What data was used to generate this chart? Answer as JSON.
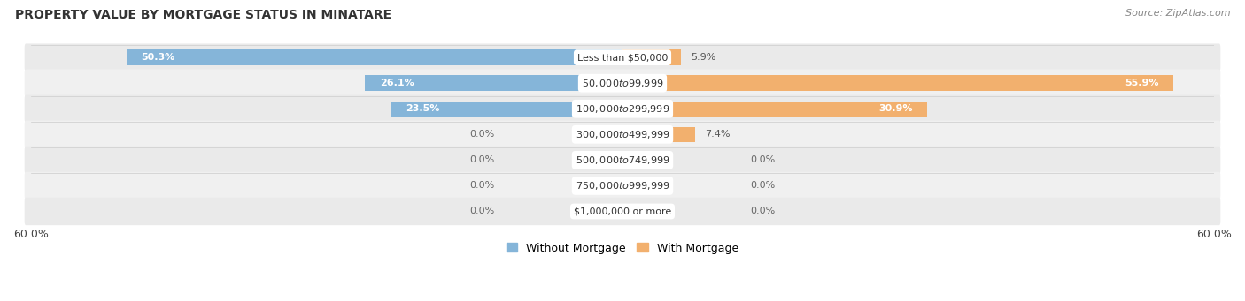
{
  "title": "PROPERTY VALUE BY MORTGAGE STATUS IN MINATARE",
  "source": "Source: ZipAtlas.com",
  "categories": [
    "Less than $50,000",
    "$50,000 to $99,999",
    "$100,000 to $299,999",
    "$300,000 to $499,999",
    "$500,000 to $749,999",
    "$750,000 to $999,999",
    "$1,000,000 or more"
  ],
  "without_mortgage": [
    50.3,
    26.1,
    23.5,
    0.0,
    0.0,
    0.0,
    0.0
  ],
  "with_mortgage": [
    5.9,
    55.9,
    30.9,
    7.4,
    0.0,
    0.0,
    0.0
  ],
  "xlim": 60.0,
  "bar_color_without": "#85b5d9",
  "bar_color_with": "#f2b06e",
  "bg_color_row_odd": "#ebebeb",
  "bg_color_row_even": "#f2f2f2",
  "bg_color_fig": "#ffffff",
  "title_fontsize": 10,
  "source_fontsize": 8,
  "tick_fontsize": 9,
  "bar_label_fontsize": 8,
  "category_fontsize": 8,
  "legend_fontsize": 9,
  "legend_label_without": "Without Mortgage",
  "legend_label_with": "With Mortgage"
}
